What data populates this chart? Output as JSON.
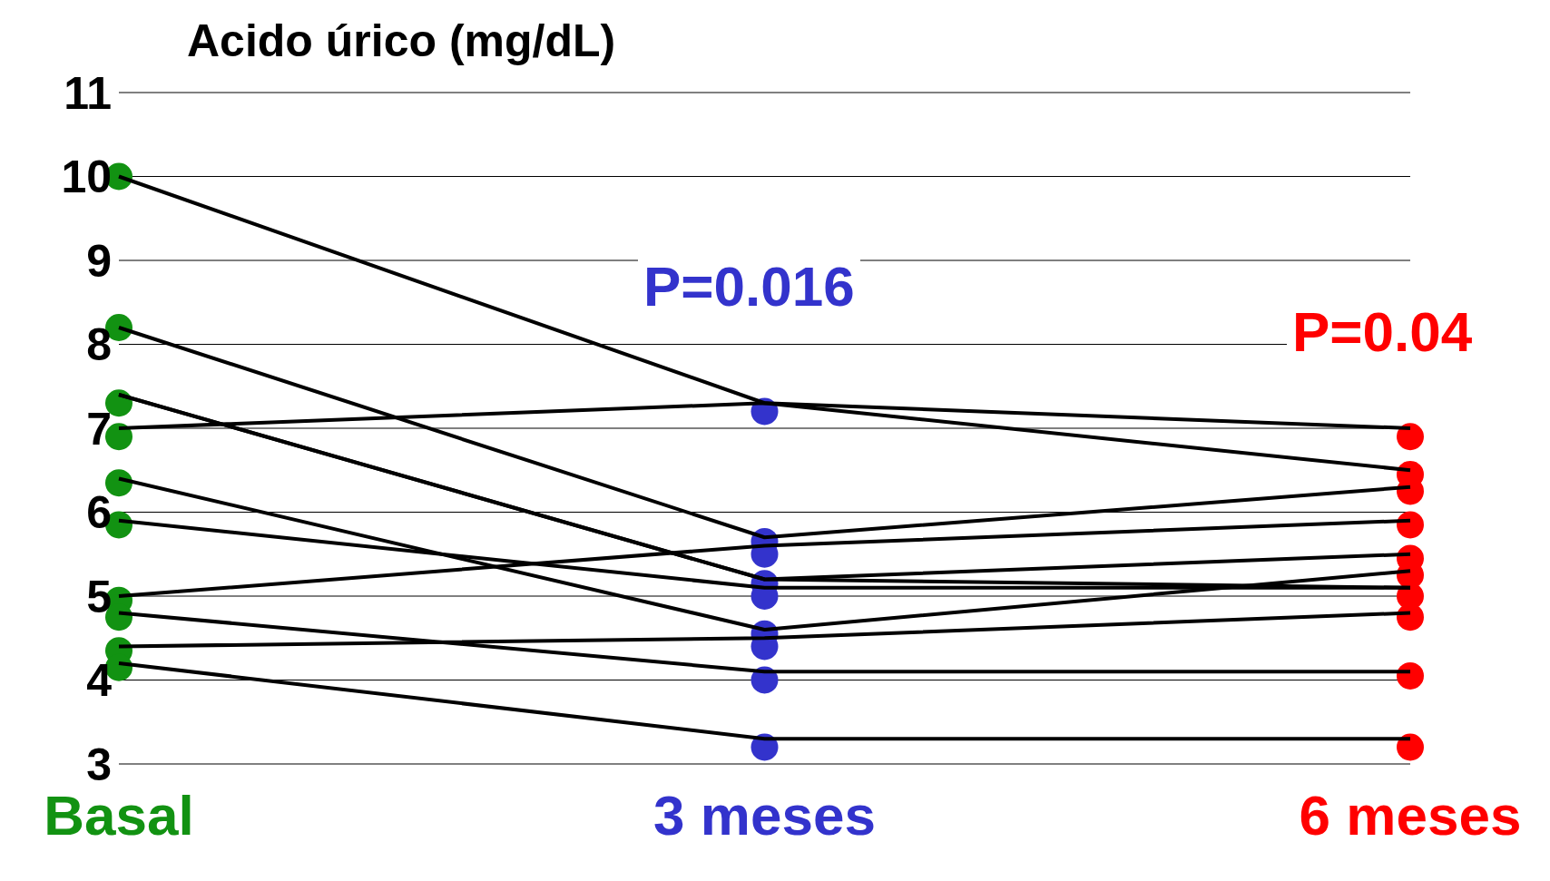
{
  "chart_data": {
    "type": "line",
    "title": "Acido úrico (mg/dL)",
    "categories": [
      "Basal",
      "3 meses",
      "6 meses"
    ],
    "series": [
      {
        "color": "#000000",
        "values": [
          10.0,
          7.3,
          6.5
        ]
      },
      {
        "color": "#000000",
        "values": [
          7.0,
          7.3,
          7.0
        ]
      },
      {
        "color": "#000000",
        "values": [
          8.2,
          5.7,
          6.3
        ]
      },
      {
        "color": "#000000",
        "values": [
          7.4,
          5.2,
          5.5
        ]
      },
      {
        "color": "#000000",
        "values": [
          7.4,
          5.2,
          5.1
        ]
      },
      {
        "color": "#000000",
        "values": [
          6.4,
          4.6,
          5.3
        ]
      },
      {
        "color": "#000000",
        "values": [
          5.9,
          5.1,
          5.1
        ]
      },
      {
        "color": "#000000",
        "values": [
          5.0,
          5.6,
          5.9
        ]
      },
      {
        "color": "#000000",
        "values": [
          4.8,
          4.1,
          4.1
        ]
      },
      {
        "color": "#000000",
        "values": [
          4.4,
          4.5,
          4.8
        ]
      },
      {
        "color": "#000000",
        "values": [
          4.2,
          3.3,
          3.3
        ]
      },
      {
        "type": "scatter",
        "marker": "circle",
        "color": "#129212",
        "x": [
          "Basal",
          "Basal",
          "Basal",
          "Basal",
          "Basal",
          "Basal",
          "Basal",
          "Basal",
          "Basal",
          "Basal"
        ],
        "values": [
          10.0,
          8.2,
          7.3,
          6.9,
          6.35,
          5.85,
          4.95,
          4.75,
          4.35,
          4.15
        ]
      },
      {
        "type": "scatter",
        "marker": "circle",
        "color": "#3333cc",
        "x": [
          "3 meses",
          "3 meses",
          "3 meses",
          "3 meses",
          "3 meses",
          "3 meses",
          "3 meses",
          "3 meses",
          "3 meses"
        ],
        "values": [
          7.2,
          5.65,
          5.5,
          5.15,
          5.0,
          4.55,
          4.4,
          4.0,
          3.2
        ]
      },
      {
        "type": "scatter",
        "marker": "circle",
        "color": "#ff0000",
        "x": [
          "6 meses",
          "6 meses",
          "6 meses",
          "6 meses",
          "6 meses",
          "6 meses",
          "6 meses",
          "6 meses",
          "6 meses",
          "6 meses"
        ],
        "values": [
          6.9,
          6.45,
          6.25,
          5.85,
          5.45,
          5.25,
          5.0,
          4.75,
          4.05,
          3.2
        ]
      }
    ],
    "ylim": [
      3,
      11
    ],
    "yticks": [
      3,
      4,
      5,
      6,
      7,
      8,
      9,
      10,
      11
    ],
    "grid": "y",
    "marker": "none",
    "line_style": "solid",
    "annotations": [
      "P=0.016",
      "P=0.04"
    ]
  }
}
